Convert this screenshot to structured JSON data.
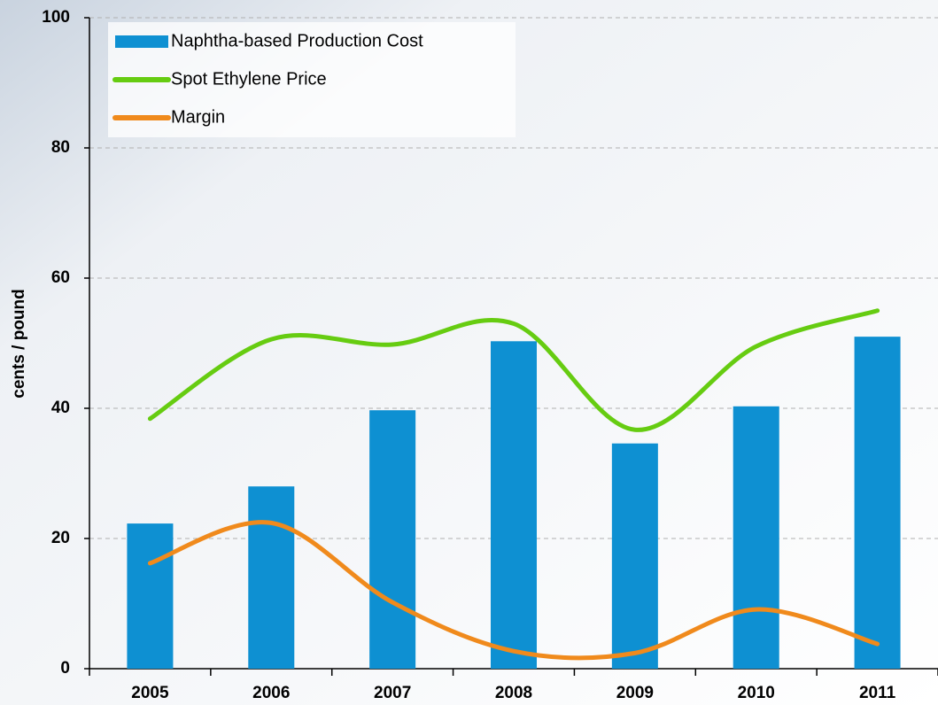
{
  "chart_data": {
    "type": "bar_line",
    "y_label": "cents / pound",
    "categories": [
      "2005",
      "2006",
      "2007",
      "2008",
      "2009",
      "2010",
      "2011"
    ],
    "series": [
      {
        "name": "Naphtha-based Production Cost",
        "type": "bar",
        "color": "#0e90d2",
        "values": [
          22.3,
          28.0,
          39.7,
          50.3,
          34.6,
          40.3,
          51.0
        ]
      },
      {
        "name": "Spot Ethylene Price",
        "type": "line",
        "color": "#66cc11",
        "values": [
          38.4,
          50.6,
          49.8,
          53.0,
          36.7,
          49.5,
          55.0
        ]
      },
      {
        "name": "Margin",
        "type": "line",
        "color": "#f08a1c",
        "values": [
          16.2,
          22.4,
          10.2,
          2.7,
          2.4,
          9.1,
          3.8
        ]
      }
    ],
    "ylim": [
      0,
      100
    ],
    "yticks": [
      0,
      20,
      40,
      60,
      80,
      100
    ],
    "grid": true,
    "legend": "top-left"
  }
}
